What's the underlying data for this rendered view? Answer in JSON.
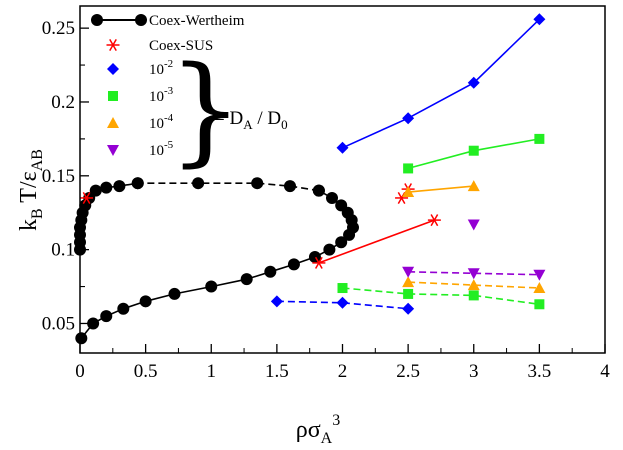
{
  "chart_data": {
    "type": "scatter",
    "xlabel": "ρσ_A^3",
    "ylabel": "k_B T/ε_AB",
    "xlim": [
      0,
      4
    ],
    "ylim": [
      0.03,
      0.265
    ],
    "x_ticks": [
      0,
      0.5,
      1,
      1.5,
      2,
      2.5,
      3,
      3.5,
      4
    ],
    "x_tick_labels": [
      "0",
      "0.5",
      "1",
      "1.5",
      "2",
      "2.5",
      "3",
      "3.5",
      "4"
    ],
    "y_ticks": [
      0.05,
      0.1,
      0.15,
      0.2,
      0.25
    ],
    "y_tick_labels": [
      "0.05",
      "0.1",
      "0.15",
      "0.2",
      "0.25"
    ],
    "annotation": {
      "text": "= D_A / D_0"
    },
    "series": [
      {
        "name": "Coex-Wertheim",
        "legend": "Coex-Wertheim",
        "color": "#000000",
        "marker": "circle",
        "segments": [
          {
            "style": "solid",
            "points": [
              [
                0.01,
                0.04
              ],
              [
                0.1,
                0.05
              ],
              [
                0.2,
                0.055
              ],
              [
                0.33,
                0.06
              ],
              [
                0.5,
                0.065
              ],
              [
                0.72,
                0.07
              ],
              [
                1.0,
                0.075
              ],
              [
                1.27,
                0.08
              ],
              [
                1.45,
                0.085
              ],
              [
                1.63,
                0.09
              ],
              [
                1.79,
                0.095
              ],
              [
                1.9,
                0.1
              ],
              [
                1.99,
                0.105
              ],
              [
                2.05,
                0.11
              ],
              [
                2.08,
                0.115
              ],
              [
                2.07,
                0.12
              ],
              [
                2.04,
                0.125
              ],
              [
                1.99,
                0.13
              ],
              [
                1.92,
                0.135
              ],
              [
                1.82,
                0.14
              ]
            ]
          },
          {
            "style": "dashed",
            "points": [
              [
                1.82,
                0.14
              ],
              [
                1.6,
                0.143
              ],
              [
                1.35,
                0.145
              ],
              [
                0.9,
                0.145
              ],
              [
                0.44,
                0.145
              ]
            ]
          },
          {
            "style": "solid",
            "points": [
              [
                0.44,
                0.145
              ],
              [
                0.3,
                0.143
              ],
              [
                0.2,
                0.142
              ],
              [
                0.12,
                0.14
              ],
              [
                0.07,
                0.135
              ],
              [
                0.04,
                0.13
              ],
              [
                0.02,
                0.125
              ],
              [
                0.01,
                0.12
              ],
              [
                0.0,
                0.115
              ],
              [
                0.0,
                0.11
              ],
              [
                0.0,
                0.105
              ],
              [
                0.0,
                0.1
              ]
            ]
          }
        ]
      },
      {
        "name": "Coex-SUS",
        "legend": "Coex-SUS",
        "color": "#ff0000",
        "marker": "asterisk",
        "segments": [
          {
            "style": "solid",
            "points": [
              [
                1.82,
                0.091
              ],
              [
                2.7,
                0.12
              ]
            ]
          },
          {
            "style": "solid",
            "points": [
              [
                2.45,
                0.135
              ],
              [
                2.5,
                0.141
              ]
            ]
          },
          {
            "style": "none",
            "points": [
              [
                0.05,
                0.135
              ]
            ]
          }
        ]
      },
      {
        "name": "1e-2",
        "legend": "10",
        "legend_exp": "-2",
        "color": "#0000ff",
        "marker": "diamond",
        "segments": [
          {
            "style": "solid",
            "points": [
              [
                2.0,
                0.169
              ],
              [
                2.5,
                0.189
              ],
              [
                3.0,
                0.213
              ],
              [
                3.5,
                0.256
              ]
            ]
          },
          {
            "style": "dashed",
            "points": [
              [
                1.5,
                0.065
              ],
              [
                2.0,
                0.064
              ],
              [
                2.5,
                0.06
              ]
            ]
          }
        ]
      },
      {
        "name": "1e-3",
        "legend": "10",
        "legend_exp": "-3",
        "color": "#22ee22",
        "marker": "square",
        "segments": [
          {
            "style": "solid",
            "points": [
              [
                2.5,
                0.155
              ],
              [
                3.0,
                0.167
              ],
              [
                3.5,
                0.175
              ]
            ]
          },
          {
            "style": "dashed",
            "points": [
              [
                2.0,
                0.074
              ],
              [
                2.5,
                0.07
              ],
              [
                3.0,
                0.069
              ],
              [
                3.5,
                0.063
              ]
            ]
          }
        ]
      },
      {
        "name": "1e-4",
        "legend": "10",
        "legend_exp": "-4",
        "color": "#ffa500",
        "marker": "triangle-up",
        "segments": [
          {
            "style": "solid",
            "points": [
              [
                2.5,
                0.139
              ],
              [
                3.0,
                0.143
              ]
            ]
          },
          {
            "style": "dashed",
            "points": [
              [
                2.5,
                0.078
              ],
              [
                3.0,
                0.076
              ],
              [
                3.5,
                0.074
              ]
            ]
          }
        ]
      },
      {
        "name": "1e-5",
        "legend": "10",
        "legend_exp": "-5",
        "color": "#9400d3",
        "marker": "triangle-down",
        "segments": [
          {
            "style": "dashed",
            "points": [
              [
                2.5,
                0.085
              ],
              [
                3.0,
                0.084
              ],
              [
                3.5,
                0.083
              ]
            ]
          },
          {
            "style": "none",
            "points": [
              [
                3.0,
                0.117
              ]
            ]
          }
        ]
      }
    ]
  }
}
